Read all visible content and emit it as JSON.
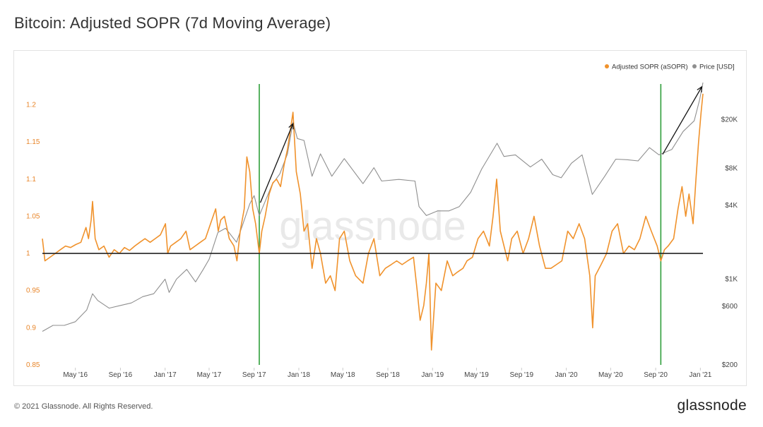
{
  "page": {
    "title": "Bitcoin: Adjusted SOPR (7d Moving Average)",
    "copyright": "© 2021 Glassnode. All Rights Reserved.",
    "logo": "glassnode",
    "watermark": "glassnode"
  },
  "colors": {
    "asopr": "#f0922c",
    "price": "#8f8f8f",
    "baseline": "#222222",
    "marker": "#2e9e3a",
    "arrow": "#111111",
    "left_axis_text": "#e8862a"
  },
  "chart_data": {
    "type": "line",
    "title": "Bitcoin: Adjusted SOPR (7d Moving Average)",
    "x_range": [
      "2016-02-01",
      "2021-01-08"
    ],
    "x_ticks": [
      "May '16",
      "Sep '16",
      "Jan '17",
      "May '17",
      "Sep '17",
      "Jan '18",
      "May '18",
      "Sep '18",
      "Jan '19",
      "May '19",
      "Sep '19",
      "Jan '20",
      "May '20",
      "Sep '20",
      "Jan '21"
    ],
    "x_tick_dates": [
      "2016-05-01",
      "2016-09-01",
      "2017-01-01",
      "2017-05-01",
      "2017-09-01",
      "2018-01-01",
      "2018-05-01",
      "2018-09-01",
      "2019-01-01",
      "2019-05-01",
      "2019-09-01",
      "2020-01-01",
      "2020-05-01",
      "2020-09-01",
      "2021-01-01"
    ],
    "y_left": {
      "label": "Adjusted SOPR (aSOPR)",
      "range": [
        0.85,
        1.23
      ],
      "ticks": [
        0.85,
        0.9,
        0.95,
        1,
        1.05,
        1.1,
        1.15,
        1.2
      ],
      "tick_labels": [
        "0.85",
        "0.9",
        "0.95",
        "1",
        "1.05",
        "1.1",
        "1.15",
        "1.2"
      ]
    },
    "y_right": {
      "label": "Price [USD]",
      "scale": "log",
      "range": [
        200,
        40000
      ],
      "ticks": [
        200,
        600,
        1000,
        4000,
        8000,
        20000
      ],
      "tick_labels": [
        "$200",
        "$600",
        "$1K",
        "$4K",
        "$8K",
        "$20K"
      ]
    },
    "legend": {
      "position": "top-right",
      "items": [
        "Adjusted SOPR (aSOPR)",
        "Price [USD]"
      ]
    },
    "reference_line": {
      "axis": "y_left",
      "value": 1
    },
    "vertical_markers": [
      "2017-09-15",
      "2020-09-15"
    ],
    "arrows": [
      {
        "from": [
          "2017-09-18",
          4200
        ],
        "to": [
          "2017-12-16",
          18500
        ]
      },
      {
        "from": [
          "2020-09-20",
          10400
        ],
        "to": [
          "2021-01-05",
          37000
        ]
      }
    ],
    "series": [
      {
        "name": "Adjusted SOPR (aSOPR)",
        "axis": "left",
        "points": [
          [
            "2016-02-01",
            1.02
          ],
          [
            "2016-02-08",
            0.99
          ],
          [
            "2016-02-22",
            0.995
          ],
          [
            "2016-03-07",
            1.0
          ],
          [
            "2016-03-21",
            1.005
          ],
          [
            "2016-04-04",
            1.01
          ],
          [
            "2016-04-18",
            1.008
          ],
          [
            "2016-05-02",
            1.012
          ],
          [
            "2016-05-16",
            1.015
          ],
          [
            "2016-05-30",
            1.035
          ],
          [
            "2016-06-06",
            1.02
          ],
          [
            "2016-06-13",
            1.045
          ],
          [
            "2016-06-17",
            1.07
          ],
          [
            "2016-06-24",
            1.02
          ],
          [
            "2016-07-04",
            1.005
          ],
          [
            "2016-07-18",
            1.01
          ],
          [
            "2016-08-01",
            0.995
          ],
          [
            "2016-08-15",
            1.005
          ],
          [
            "2016-08-29",
            1.0
          ],
          [
            "2016-09-12",
            1.008
          ],
          [
            "2016-09-26",
            1.004
          ],
          [
            "2016-10-10",
            1.01
          ],
          [
            "2016-10-24",
            1.015
          ],
          [
            "2016-11-07",
            1.02
          ],
          [
            "2016-11-21",
            1.015
          ],
          [
            "2016-12-05",
            1.02
          ],
          [
            "2016-12-19",
            1.025
          ],
          [
            "2017-01-02",
            1.04
          ],
          [
            "2017-01-08",
            1.0
          ],
          [
            "2017-01-16",
            1.01
          ],
          [
            "2017-01-30",
            1.015
          ],
          [
            "2017-02-13",
            1.02
          ],
          [
            "2017-02-27",
            1.03
          ],
          [
            "2017-03-10",
            1.005
          ],
          [
            "2017-03-24",
            1.01
          ],
          [
            "2017-04-07",
            1.015
          ],
          [
            "2017-04-21",
            1.02
          ],
          [
            "2017-05-05",
            1.04
          ],
          [
            "2017-05-19",
            1.06
          ],
          [
            "2017-05-26",
            1.03
          ],
          [
            "2017-06-02",
            1.045
          ],
          [
            "2017-06-12",
            1.05
          ],
          [
            "2017-06-25",
            1.02
          ],
          [
            "2017-07-08",
            1.01
          ],
          [
            "2017-07-16",
            0.99
          ],
          [
            "2017-07-25",
            1.03
          ],
          [
            "2017-08-05",
            1.06
          ],
          [
            "2017-08-12",
            1.13
          ],
          [
            "2017-08-20",
            1.11
          ],
          [
            "2017-08-28",
            1.06
          ],
          [
            "2017-09-05",
            1.04
          ],
          [
            "2017-09-15",
            1.0
          ],
          [
            "2017-09-22",
            1.03
          ],
          [
            "2017-10-01",
            1.05
          ],
          [
            "2017-10-12",
            1.08
          ],
          [
            "2017-10-22",
            1.095
          ],
          [
            "2017-11-01",
            1.1
          ],
          [
            "2017-11-12",
            1.09
          ],
          [
            "2017-11-22",
            1.12
          ],
          [
            "2017-12-01",
            1.14
          ],
          [
            "2017-12-10",
            1.17
          ],
          [
            "2017-12-16",
            1.19
          ],
          [
            "2017-12-25",
            1.11
          ],
          [
            "2018-01-05",
            1.08
          ],
          [
            "2018-01-15",
            1.03
          ],
          [
            "2018-01-25",
            1.04
          ],
          [
            "2018-02-06",
            0.98
          ],
          [
            "2018-02-18",
            1.02
          ],
          [
            "2018-03-01",
            1.0
          ],
          [
            "2018-03-15",
            0.96
          ],
          [
            "2018-03-28",
            0.97
          ],
          [
            "2018-04-10",
            0.95
          ],
          [
            "2018-04-22",
            1.02
          ],
          [
            "2018-05-05",
            1.03
          ],
          [
            "2018-05-20",
            0.99
          ],
          [
            "2018-06-05",
            0.97
          ],
          [
            "2018-06-25",
            0.96
          ],
          [
            "2018-07-10",
            1.0
          ],
          [
            "2018-07-25",
            1.02
          ],
          [
            "2018-08-10",
            0.97
          ],
          [
            "2018-08-25",
            0.98
          ],
          [
            "2018-09-10",
            0.985
          ],
          [
            "2018-09-25",
            0.99
          ],
          [
            "2018-10-10",
            0.985
          ],
          [
            "2018-10-25",
            0.99
          ],
          [
            "2018-11-10",
            0.995
          ],
          [
            "2018-11-20",
            0.95
          ],
          [
            "2018-11-28",
            0.91
          ],
          [
            "2018-12-08",
            0.93
          ],
          [
            "2018-12-15",
            0.96
          ],
          [
            "2018-12-22",
            1.0
          ],
          [
            "2018-12-29",
            0.87
          ],
          [
            "2019-01-10",
            0.96
          ],
          [
            "2019-01-25",
            0.95
          ],
          [
            "2019-02-10",
            0.99
          ],
          [
            "2019-02-25",
            0.97
          ],
          [
            "2019-03-10",
            0.975
          ],
          [
            "2019-03-25",
            0.98
          ],
          [
            "2019-04-05",
            0.99
          ],
          [
            "2019-04-20",
            0.995
          ],
          [
            "2019-05-05",
            1.02
          ],
          [
            "2019-05-20",
            1.03
          ],
          [
            "2019-06-05",
            1.01
          ],
          [
            "2019-06-15",
            1.05
          ],
          [
            "2019-06-25",
            1.1
          ],
          [
            "2019-07-05",
            1.03
          ],
          [
            "2019-07-15",
            1.01
          ],
          [
            "2019-07-25",
            0.99
          ],
          [
            "2019-08-05",
            1.02
          ],
          [
            "2019-08-20",
            1.03
          ],
          [
            "2019-09-05",
            1.0
          ],
          [
            "2019-09-20",
            1.02
          ],
          [
            "2019-10-05",
            1.05
          ],
          [
            "2019-10-20",
            1.01
          ],
          [
            "2019-11-05",
            0.98
          ],
          [
            "2019-11-20",
            0.98
          ],
          [
            "2019-12-05",
            0.985
          ],
          [
            "2019-12-20",
            0.99
          ],
          [
            "2020-01-05",
            1.03
          ],
          [
            "2020-01-20",
            1.02
          ],
          [
            "2020-02-05",
            1.04
          ],
          [
            "2020-02-20",
            1.02
          ],
          [
            "2020-03-05",
            0.97
          ],
          [
            "2020-03-13",
            0.9
          ],
          [
            "2020-03-20",
            0.97
          ],
          [
            "2020-04-05",
            0.985
          ],
          [
            "2020-04-20",
            1.0
          ],
          [
            "2020-05-05",
            1.03
          ],
          [
            "2020-05-20",
            1.04
          ],
          [
            "2020-06-05",
            1.0
          ],
          [
            "2020-06-20",
            1.01
          ],
          [
            "2020-07-05",
            1.005
          ],
          [
            "2020-07-20",
            1.02
          ],
          [
            "2020-08-05",
            1.05
          ],
          [
            "2020-08-20",
            1.03
          ],
          [
            "2020-09-05",
            1.01
          ],
          [
            "2020-09-15",
            0.99
          ],
          [
            "2020-09-25",
            1.005
          ],
          [
            "2020-10-05",
            1.01
          ],
          [
            "2020-10-20",
            1.02
          ],
          [
            "2020-11-01",
            1.06
          ],
          [
            "2020-11-12",
            1.09
          ],
          [
            "2020-11-22",
            1.05
          ],
          [
            "2020-12-01",
            1.08
          ],
          [
            "2020-12-12",
            1.04
          ],
          [
            "2020-12-20",
            1.1
          ],
          [
            "2020-12-27",
            1.15
          ],
          [
            "2021-01-03",
            1.19
          ],
          [
            "2021-01-08",
            1.215
          ]
        ]
      },
      {
        "name": "Price [USD]",
        "axis": "right",
        "points": [
          [
            "2016-02-01",
            375
          ],
          [
            "2016-03-01",
            420
          ],
          [
            "2016-04-01",
            420
          ],
          [
            "2016-05-01",
            450
          ],
          [
            "2016-06-01",
            560
          ],
          [
            "2016-06-17",
            760
          ],
          [
            "2016-07-01",
            670
          ],
          [
            "2016-08-01",
            580
          ],
          [
            "2016-09-01",
            610
          ],
          [
            "2016-10-01",
            640
          ],
          [
            "2016-11-01",
            720
          ],
          [
            "2016-12-01",
            760
          ],
          [
            "2017-01-01",
            1000
          ],
          [
            "2017-01-12",
            780
          ],
          [
            "2017-02-01",
            1000
          ],
          [
            "2017-03-01",
            1200
          ],
          [
            "2017-03-25",
            950
          ],
          [
            "2017-04-15",
            1200
          ],
          [
            "2017-05-01",
            1450
          ],
          [
            "2017-05-25",
            2400
          ],
          [
            "2017-06-15",
            2600
          ],
          [
            "2017-07-15",
            2000
          ],
          [
            "2017-08-01",
            2800
          ],
          [
            "2017-08-20",
            4100
          ],
          [
            "2017-09-01",
            4800
          ],
          [
            "2017-09-15",
            3300
          ],
          [
            "2017-10-01",
            4300
          ],
          [
            "2017-10-20",
            5900
          ],
          [
            "2017-11-10",
            7200
          ],
          [
            "2017-12-01",
            10500
          ],
          [
            "2017-12-16",
            19000
          ],
          [
            "2017-12-28",
            14000
          ],
          [
            "2018-01-15",
            13500
          ],
          [
            "2018-02-06",
            6900
          ],
          [
            "2018-03-01",
            10500
          ],
          [
            "2018-04-01",
            6900
          ],
          [
            "2018-05-05",
            9600
          ],
          [
            "2018-06-25",
            6000
          ],
          [
            "2018-07-25",
            8100
          ],
          [
            "2018-08-15",
            6300
          ],
          [
            "2018-10-01",
            6500
          ],
          [
            "2018-11-14",
            6300
          ],
          [
            "2018-11-25",
            3900
          ],
          [
            "2018-12-15",
            3300
          ],
          [
            "2019-01-15",
            3600
          ],
          [
            "2019-02-15",
            3600
          ],
          [
            "2019-03-15",
            3900
          ],
          [
            "2019-04-15",
            5100
          ],
          [
            "2019-05-15",
            7900
          ],
          [
            "2019-06-26",
            12800
          ],
          [
            "2019-07-15",
            10000
          ],
          [
            "2019-08-15",
            10300
          ],
          [
            "2019-09-25",
            8200
          ],
          [
            "2019-10-26",
            9500
          ],
          [
            "2019-11-25",
            7100
          ],
          [
            "2019-12-18",
            6700
          ],
          [
            "2020-01-15",
            8800
          ],
          [
            "2020-02-13",
            10300
          ],
          [
            "2020-03-12",
            4900
          ],
          [
            "2020-04-15",
            6900
          ],
          [
            "2020-05-15",
            9500
          ],
          [
            "2020-06-15",
            9400
          ],
          [
            "2020-07-15",
            9200
          ],
          [
            "2020-08-15",
            11800
          ],
          [
            "2020-09-10",
            10300
          ],
          [
            "2020-10-15",
            11400
          ],
          [
            "2020-11-15",
            16000
          ],
          [
            "2020-12-15",
            19500
          ],
          [
            "2020-12-30",
            29000
          ],
          [
            "2021-01-08",
            40000
          ]
        ]
      }
    ]
  }
}
